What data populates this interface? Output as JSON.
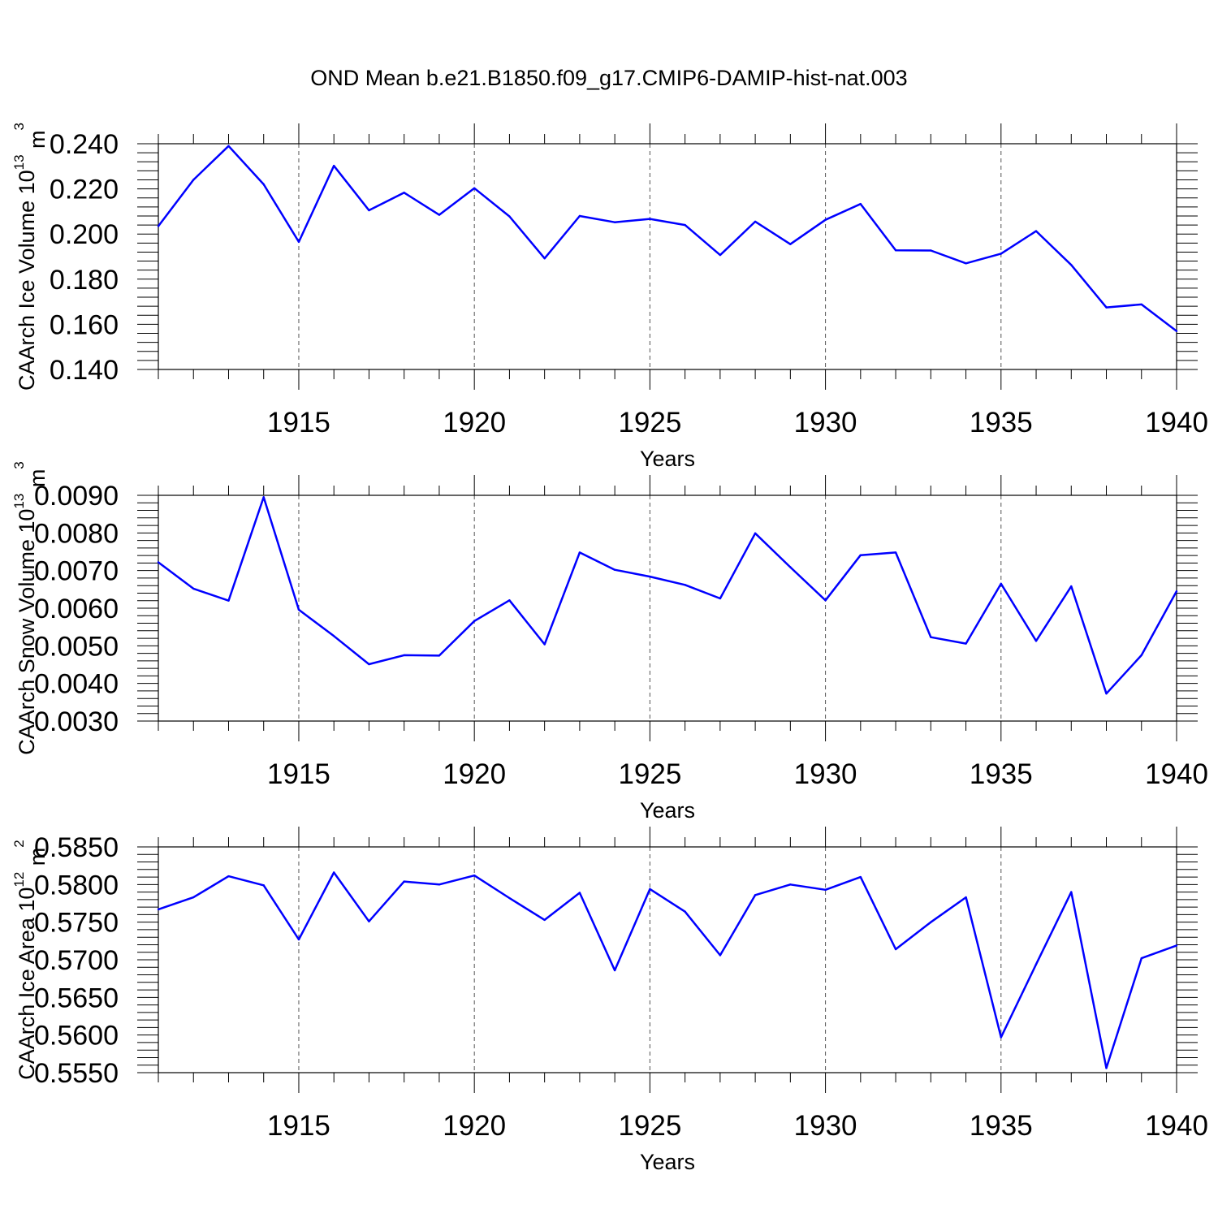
{
  "title": "OND Mean b.e21.B1850.f09_g17.CMIP6-DAMIP-hist-nat.003",
  "line_color": "#0000ff",
  "chart_data": [
    {
      "type": "line",
      "title": "",
      "xlabel": "Years",
      "ylabel": {
        "base": "CAArch Ice Volume 10",
        "exp": "13",
        "unit": " m",
        "unit_exp": "3"
      },
      "xlim": [
        1911,
        1940
      ],
      "ylim": [
        0.14,
        0.24
      ],
      "x_ticks": [
        1915,
        1920,
        1925,
        1930,
        1935,
        1940
      ],
      "y_ticks": [
        "0.140",
        "0.160",
        "0.180",
        "0.200",
        "0.220",
        "0.240"
      ],
      "y_tick_values": [
        0.14,
        0.16,
        0.18,
        0.2,
        0.22,
        0.24
      ],
      "grid": "vertical dashed at major x ticks",
      "x": [
        1911,
        1912,
        1913,
        1914,
        1915,
        1916,
        1917,
        1918,
        1919,
        1920,
        1921,
        1922,
        1923,
        1924,
        1925,
        1926,
        1927,
        1928,
        1929,
        1930,
        1931,
        1932,
        1933,
        1934,
        1935,
        1936,
        1937,
        1938,
        1939,
        1940
      ],
      "values": [
        0.2035,
        0.224,
        0.239,
        0.222,
        0.1965,
        0.2302,
        0.2105,
        0.2183,
        0.2085,
        0.2203,
        0.2078,
        0.1892,
        0.208,
        0.2052,
        0.2067,
        0.204,
        0.1907,
        0.2055,
        0.1955,
        0.2063,
        0.2133,
        0.1928,
        0.1927,
        0.187,
        0.1913,
        0.2013,
        0.1863,
        0.1675,
        0.1688,
        0.157
      ]
    },
    {
      "type": "line",
      "title": "",
      "xlabel": "Years",
      "ylabel": {
        "base": "CAArch Snow Volume 10",
        "exp": "13",
        "unit": " m",
        "unit_exp": "3"
      },
      "xlim": [
        1911,
        1940
      ],
      "ylim": [
        0.003,
        0.009
      ],
      "x_ticks": [
        1915,
        1920,
        1925,
        1930,
        1935,
        1940
      ],
      "y_ticks": [
        "0.0030",
        "0.0040",
        "0.0050",
        "0.0060",
        "0.0070",
        "0.0080",
        "0.0090"
      ],
      "y_tick_values": [
        0.003,
        0.004,
        0.005,
        0.006,
        0.007,
        0.008,
        0.009
      ],
      "grid": "vertical dashed at major x ticks",
      "x": [
        1911,
        1912,
        1913,
        1914,
        1915,
        1916,
        1917,
        1918,
        1919,
        1920,
        1921,
        1922,
        1923,
        1924,
        1925,
        1926,
        1927,
        1928,
        1929,
        1930,
        1931,
        1932,
        1933,
        1934,
        1935,
        1936,
        1937,
        1938,
        1939,
        1940
      ],
      "values": [
        0.00722,
        0.00652,
        0.0062,
        0.00895,
        0.00596,
        0.00526,
        0.00451,
        0.00475,
        0.00474,
        0.00566,
        0.00621,
        0.00504,
        0.00748,
        0.00702,
        0.00684,
        0.00662,
        0.00626,
        0.00799,
        0.00709,
        0.00621,
        0.00741,
        0.00748,
        0.00523,
        0.00506,
        0.00665,
        0.00513,
        0.00658,
        0.00373,
        0.00475,
        0.00645
      ]
    },
    {
      "type": "line",
      "title": "",
      "xlabel": "Years",
      "ylabel": {
        "base": "CAArch Ice Area 10",
        "exp": "12",
        "unit": " m",
        "unit_exp": "2"
      },
      "xlim": [
        1911,
        1940
      ],
      "ylim": [
        0.555,
        0.585
      ],
      "x_ticks": [
        1915,
        1920,
        1925,
        1930,
        1935,
        1940
      ],
      "y_ticks": [
        "0.5550",
        "0.5600",
        "0.5650",
        "0.5700",
        "0.5750",
        "0.5800",
        "0.5850"
      ],
      "y_tick_values": [
        0.555,
        0.56,
        0.565,
        0.57,
        0.575,
        0.58,
        0.585
      ],
      "grid": "vertical dashed at major x ticks",
      "x": [
        1911,
        1912,
        1913,
        1914,
        1915,
        1916,
        1917,
        1918,
        1919,
        1920,
        1921,
        1922,
        1923,
        1924,
        1925,
        1926,
        1927,
        1928,
        1929,
        1930,
        1931,
        1932,
        1933,
        1934,
        1935,
        1936,
        1937,
        1938,
        1939,
        1940
      ],
      "values": [
        0.5767,
        0.5783,
        0.5811,
        0.5799,
        0.5727,
        0.5816,
        0.5751,
        0.5804,
        0.58,
        0.5812,
        0.5782,
        0.5753,
        0.5789,
        0.5686,
        0.5794,
        0.5764,
        0.5706,
        0.5786,
        0.58,
        0.5793,
        0.581,
        0.5714,
        0.575,
        0.5783,
        0.5597,
        0.5694,
        0.579,
        0.5556,
        0.5702,
        0.5719
      ]
    }
  ]
}
